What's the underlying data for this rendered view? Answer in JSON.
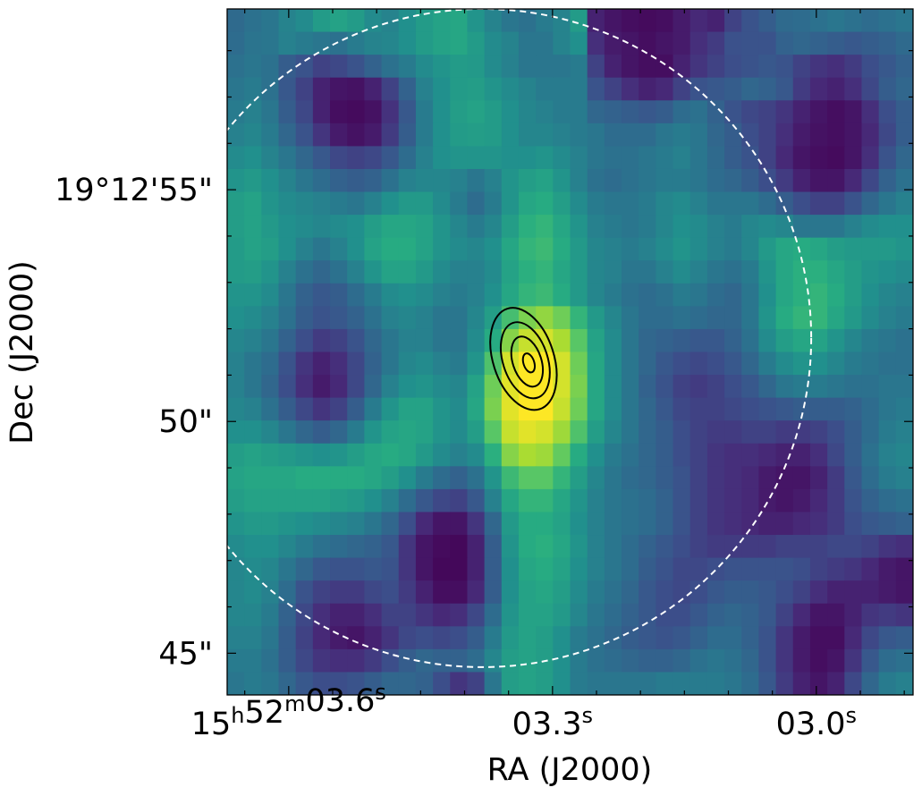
{
  "chart_data": {
    "type": "heatmap",
    "colormap": "viridis",
    "xlabel": "RA (J2000)",
    "ylabel": "Dec (J2000)",
    "x_tick_labels": [
      {
        "ra_s": 3.6,
        "base": "15",
        "h": "h",
        "mid": "52",
        "m": "m",
        "val": "03.6",
        "s": "s"
      },
      {
        "ra_s": 3.3,
        "base": "",
        "h": "",
        "mid": "",
        "m": "",
        "val": "03.3",
        "s": "s"
      },
      {
        "ra_s": 3.0,
        "base": "",
        "h": "",
        "mid": "",
        "m": "",
        "val": "03.0",
        "s": "s"
      }
    ],
    "y_tick_labels": [
      {
        "dec_arcsec": 55,
        "label": "19°12'55\""
      },
      {
        "dec_arcsec": 50,
        "label": "50\""
      },
      {
        "dec_arcsec": 45,
        "label": "45\""
      }
    ],
    "xlim_ra_s": [
      3.67,
      2.89
    ],
    "ylim_dec_arcsec": [
      44.1,
      58.9
    ],
    "beam_circle": {
      "center_ra_s": 3.38,
      "center_dec_arcsec": 51.8,
      "radius_arcsec": 7.1,
      "style": "dashed",
      "color": "#ffffff"
    },
    "contours": {
      "center_ra_s": 3.333,
      "center_dec_arcsec": 51.35,
      "levels": 4,
      "color": "#000000"
    },
    "grid": [
      [
        0.35,
        0.38,
        0.4,
        0.45,
        0.48,
        0.55,
        0.58,
        0.55,
        0.48,
        0.45,
        0.5,
        0.55,
        0.58,
        0.6,
        0.52,
        0.45,
        0.4,
        0.38,
        0.42,
        0.45,
        0.55,
        0.1,
        0.06,
        0.04,
        0.03,
        0.04,
        0.08,
        0.12,
        0.1,
        0.2,
        0.26,
        0.3,
        0.35,
        0.36,
        0.38,
        0.4,
        0.38,
        0.36,
        0.38,
        0.4
      ],
      [
        0.36,
        0.39,
        0.4,
        0.44,
        0.42,
        0.4,
        0.38,
        0.42,
        0.45,
        0.46,
        0.5,
        0.55,
        0.58,
        0.6,
        0.55,
        0.48,
        0.45,
        0.4,
        0.4,
        0.45,
        0.5,
        0.14,
        0.08,
        0.06,
        0.04,
        0.06,
        0.08,
        0.14,
        0.18,
        0.25,
        0.26,
        0.26,
        0.32,
        0.34,
        0.32,
        0.3,
        0.28,
        0.3,
        0.32,
        0.35
      ],
      [
        0.38,
        0.4,
        0.38,
        0.3,
        0.26,
        0.2,
        0.22,
        0.26,
        0.32,
        0.38,
        0.42,
        0.48,
        0.52,
        0.55,
        0.54,
        0.48,
        0.44,
        0.4,
        0.4,
        0.4,
        0.42,
        0.2,
        0.1,
        0.06,
        0.04,
        0.04,
        0.1,
        0.16,
        0.2,
        0.24,
        0.26,
        0.28,
        0.26,
        0.2,
        0.16,
        0.14,
        0.18,
        0.24,
        0.28,
        0.32
      ],
      [
        0.4,
        0.42,
        0.38,
        0.28,
        0.2,
        0.1,
        0.06,
        0.05,
        0.1,
        0.2,
        0.32,
        0.44,
        0.5,
        0.55,
        0.56,
        0.52,
        0.48,
        0.45,
        0.42,
        0.42,
        0.42,
        0.26,
        0.2,
        0.14,
        0.1,
        0.12,
        0.2,
        0.26,
        0.28,
        0.3,
        0.34,
        0.32,
        0.28,
        0.18,
        0.12,
        0.1,
        0.14,
        0.22,
        0.3,
        0.34
      ],
      [
        0.42,
        0.44,
        0.4,
        0.3,
        0.22,
        0.1,
        0.04,
        0.03,
        0.05,
        0.15,
        0.28,
        0.42,
        0.5,
        0.56,
        0.58,
        0.55,
        0.5,
        0.46,
        0.44,
        0.42,
        0.42,
        0.34,
        0.32,
        0.3,
        0.28,
        0.3,
        0.36,
        0.38,
        0.32,
        0.26,
        0.22,
        0.2,
        0.16,
        0.1,
        0.06,
        0.04,
        0.06,
        0.14,
        0.24,
        0.3
      ],
      [
        0.44,
        0.46,
        0.42,
        0.34,
        0.26,
        0.16,
        0.08,
        0.05,
        0.08,
        0.18,
        0.3,
        0.42,
        0.5,
        0.55,
        0.56,
        0.55,
        0.5,
        0.46,
        0.46,
        0.44,
        0.42,
        0.4,
        0.36,
        0.36,
        0.36,
        0.4,
        0.42,
        0.4,
        0.34,
        0.3,
        0.24,
        0.2,
        0.14,
        0.08,
        0.05,
        0.04,
        0.06,
        0.12,
        0.22,
        0.3
      ],
      [
        0.48,
        0.5,
        0.45,
        0.4,
        0.34,
        0.28,
        0.22,
        0.2,
        0.22,
        0.28,
        0.36,
        0.44,
        0.5,
        0.52,
        0.52,
        0.52,
        0.5,
        0.5,
        0.52,
        0.48,
        0.44,
        0.4,
        0.38,
        0.38,
        0.4,
        0.42,
        0.44,
        0.4,
        0.35,
        0.3,
        0.26,
        0.2,
        0.12,
        0.06,
        0.04,
        0.03,
        0.06,
        0.14,
        0.26,
        0.34
      ],
      [
        0.52,
        0.54,
        0.5,
        0.45,
        0.4,
        0.36,
        0.32,
        0.3,
        0.32,
        0.38,
        0.44,
        0.46,
        0.46,
        0.44,
        0.4,
        0.44,
        0.52,
        0.56,
        0.58,
        0.52,
        0.44,
        0.38,
        0.36,
        0.38,
        0.4,
        0.42,
        0.42,
        0.4,
        0.36,
        0.34,
        0.3,
        0.24,
        0.18,
        0.1,
        0.06,
        0.06,
        0.12,
        0.22,
        0.32,
        0.38
      ],
      [
        0.56,
        0.58,
        0.52,
        0.48,
        0.46,
        0.44,
        0.42,
        0.4,
        0.44,
        0.5,
        0.54,
        0.54,
        0.48,
        0.42,
        0.36,
        0.42,
        0.52,
        0.6,
        0.62,
        0.56,
        0.48,
        0.42,
        0.4,
        0.4,
        0.42,
        0.46,
        0.48,
        0.44,
        0.4,
        0.4,
        0.4,
        0.36,
        0.3,
        0.24,
        0.2,
        0.2,
        0.26,
        0.34,
        0.4,
        0.44
      ],
      [
        0.56,
        0.58,
        0.54,
        0.5,
        0.48,
        0.46,
        0.48,
        0.5,
        0.56,
        0.6,
        0.6,
        0.58,
        0.52,
        0.46,
        0.42,
        0.46,
        0.56,
        0.64,
        0.66,
        0.6,
        0.52,
        0.44,
        0.42,
        0.4,
        0.42,
        0.46,
        0.5,
        0.48,
        0.44,
        0.42,
        0.46,
        0.48,
        0.46,
        0.4,
        0.4,
        0.4,
        0.44,
        0.48,
        0.5,
        0.5
      ],
      [
        0.55,
        0.58,
        0.56,
        0.5,
        0.44,
        0.4,
        0.44,
        0.5,
        0.58,
        0.62,
        0.62,
        0.58,
        0.52,
        0.48,
        0.46,
        0.5,
        0.6,
        0.66,
        0.68,
        0.62,
        0.54,
        0.46,
        0.44,
        0.42,
        0.44,
        0.48,
        0.52,
        0.48,
        0.44,
        0.42,
        0.46,
        0.54,
        0.6,
        0.62,
        0.6,
        0.56,
        0.54,
        0.54,
        0.54,
        0.52
      ],
      [
        0.55,
        0.56,
        0.52,
        0.44,
        0.38,
        0.34,
        0.38,
        0.44,
        0.52,
        0.58,
        0.58,
        0.54,
        0.48,
        0.44,
        0.44,
        0.48,
        0.58,
        0.64,
        0.66,
        0.6,
        0.54,
        0.46,
        0.44,
        0.4,
        0.4,
        0.44,
        0.48,
        0.44,
        0.4,
        0.38,
        0.42,
        0.52,
        0.6,
        0.64,
        0.64,
        0.6,
        0.56,
        0.52,
        0.5,
        0.48
      ],
      [
        0.52,
        0.52,
        0.48,
        0.4,
        0.32,
        0.28,
        0.3,
        0.36,
        0.42,
        0.48,
        0.5,
        0.48,
        0.44,
        0.42,
        0.44,
        0.5,
        0.6,
        0.66,
        0.68,
        0.62,
        0.54,
        0.46,
        0.42,
        0.38,
        0.36,
        0.38,
        0.42,
        0.4,
        0.36,
        0.34,
        0.4,
        0.5,
        0.6,
        0.64,
        0.66,
        0.62,
        0.56,
        0.5,
        0.46,
        0.44
      ],
      [
        0.5,
        0.48,
        0.44,
        0.38,
        0.3,
        0.26,
        0.28,
        0.32,
        0.38,
        0.44,
        0.46,
        0.44,
        0.4,
        0.4,
        0.46,
        0.56,
        0.7,
        0.8,
        0.84,
        0.78,
        0.66,
        0.54,
        0.46,
        0.4,
        0.36,
        0.36,
        0.38,
        0.36,
        0.34,
        0.34,
        0.4,
        0.52,
        0.62,
        0.66,
        0.66,
        0.6,
        0.54,
        0.48,
        0.44,
        0.42
      ],
      [
        0.46,
        0.44,
        0.4,
        0.32,
        0.24,
        0.18,
        0.2,
        0.26,
        0.34,
        0.4,
        0.44,
        0.44,
        0.4,
        0.4,
        0.48,
        0.62,
        0.82,
        0.92,
        0.94,
        0.88,
        0.74,
        0.58,
        0.48,
        0.4,
        0.34,
        0.32,
        0.3,
        0.28,
        0.28,
        0.32,
        0.38,
        0.48,
        0.56,
        0.6,
        0.58,
        0.52,
        0.46,
        0.42,
        0.4,
        0.38
      ],
      [
        0.44,
        0.4,
        0.36,
        0.26,
        0.16,
        0.1,
        0.14,
        0.22,
        0.32,
        0.4,
        0.46,
        0.48,
        0.44,
        0.42,
        0.52,
        0.72,
        0.94,
        1.0,
        1.0,
        0.94,
        0.78,
        0.6,
        0.48,
        0.4,
        0.34,
        0.28,
        0.24,
        0.22,
        0.24,
        0.28,
        0.34,
        0.42,
        0.48,
        0.52,
        0.5,
        0.46,
        0.42,
        0.4,
        0.38,
        0.38
      ],
      [
        0.44,
        0.4,
        0.34,
        0.24,
        0.14,
        0.08,
        0.12,
        0.22,
        0.34,
        0.44,
        0.5,
        0.52,
        0.48,
        0.46,
        0.58,
        0.78,
        0.96,
        1.0,
        1.0,
        0.94,
        0.8,
        0.6,
        0.48,
        0.4,
        0.32,
        0.26,
        0.2,
        0.18,
        0.2,
        0.24,
        0.28,
        0.34,
        0.4,
        0.42,
        0.42,
        0.4,
        0.38,
        0.38,
        0.4,
        0.4
      ],
      [
        0.46,
        0.44,
        0.38,
        0.3,
        0.22,
        0.16,
        0.2,
        0.3,
        0.42,
        0.52,
        0.58,
        0.58,
        0.52,
        0.48,
        0.6,
        0.8,
        0.96,
        1.0,
        1.0,
        0.92,
        0.78,
        0.6,
        0.48,
        0.4,
        0.34,
        0.28,
        0.22,
        0.2,
        0.2,
        0.22,
        0.24,
        0.26,
        0.28,
        0.3,
        0.3,
        0.3,
        0.32,
        0.36,
        0.4,
        0.42
      ],
      [
        0.5,
        0.5,
        0.46,
        0.4,
        0.34,
        0.3,
        0.34,
        0.42,
        0.52,
        0.58,
        0.6,
        0.58,
        0.52,
        0.48,
        0.56,
        0.74,
        0.92,
        0.96,
        0.94,
        0.86,
        0.72,
        0.56,
        0.46,
        0.4,
        0.34,
        0.3,
        0.24,
        0.2,
        0.18,
        0.18,
        0.2,
        0.2,
        0.18,
        0.18,
        0.2,
        0.24,
        0.3,
        0.36,
        0.42,
        0.44
      ],
      [
        0.56,
        0.58,
        0.56,
        0.54,
        0.52,
        0.5,
        0.52,
        0.56,
        0.6,
        0.62,
        0.6,
        0.54,
        0.48,
        0.44,
        0.48,
        0.64,
        0.82,
        0.88,
        0.86,
        0.76,
        0.62,
        0.5,
        0.42,
        0.38,
        0.34,
        0.3,
        0.24,
        0.2,
        0.16,
        0.14,
        0.14,
        0.12,
        0.1,
        0.1,
        0.14,
        0.22,
        0.3,
        0.38,
        0.44,
        0.46
      ],
      [
        0.58,
        0.6,
        0.6,
        0.6,
        0.62,
        0.62,
        0.62,
        0.62,
        0.6,
        0.56,
        0.5,
        0.42,
        0.36,
        0.32,
        0.38,
        0.52,
        0.68,
        0.74,
        0.74,
        0.66,
        0.56,
        0.46,
        0.4,
        0.36,
        0.34,
        0.3,
        0.26,
        0.2,
        0.16,
        0.14,
        0.12,
        0.08,
        0.06,
        0.06,
        0.1,
        0.18,
        0.28,
        0.36,
        0.42,
        0.44
      ],
      [
        0.56,
        0.58,
        0.58,
        0.58,
        0.58,
        0.58,
        0.56,
        0.54,
        0.5,
        0.44,
        0.36,
        0.28,
        0.22,
        0.2,
        0.28,
        0.44,
        0.6,
        0.66,
        0.66,
        0.6,
        0.52,
        0.44,
        0.4,
        0.38,
        0.36,
        0.32,
        0.26,
        0.2,
        0.16,
        0.14,
        0.12,
        0.08,
        0.06,
        0.08,
        0.12,
        0.18,
        0.26,
        0.32,
        0.36,
        0.38
      ],
      [
        0.52,
        0.54,
        0.54,
        0.52,
        0.5,
        0.48,
        0.46,
        0.44,
        0.4,
        0.34,
        0.24,
        0.12,
        0.06,
        0.06,
        0.16,
        0.34,
        0.54,
        0.62,
        0.62,
        0.58,
        0.5,
        0.44,
        0.4,
        0.38,
        0.36,
        0.32,
        0.26,
        0.2,
        0.16,
        0.14,
        0.12,
        0.1,
        0.1,
        0.12,
        0.14,
        0.18,
        0.24,
        0.28,
        0.3,
        0.32
      ],
      [
        0.48,
        0.5,
        0.5,
        0.46,
        0.42,
        0.38,
        0.36,
        0.34,
        0.32,
        0.28,
        0.16,
        0.06,
        0.03,
        0.02,
        0.1,
        0.3,
        0.52,
        0.62,
        0.64,
        0.6,
        0.52,
        0.44,
        0.4,
        0.36,
        0.32,
        0.28,
        0.24,
        0.2,
        0.18,
        0.18,
        0.18,
        0.18,
        0.2,
        0.2,
        0.2,
        0.22,
        0.22,
        0.2,
        0.16,
        0.14
      ],
      [
        0.46,
        0.48,
        0.46,
        0.4,
        0.34,
        0.28,
        0.26,
        0.26,
        0.28,
        0.26,
        0.16,
        0.06,
        0.02,
        0.02,
        0.1,
        0.3,
        0.5,
        0.6,
        0.62,
        0.58,
        0.5,
        0.44,
        0.4,
        0.36,
        0.3,
        0.26,
        0.22,
        0.22,
        0.24,
        0.26,
        0.26,
        0.26,
        0.26,
        0.24,
        0.2,
        0.18,
        0.16,
        0.12,
        0.08,
        0.06
      ],
      [
        0.46,
        0.48,
        0.44,
        0.36,
        0.26,
        0.2,
        0.18,
        0.18,
        0.22,
        0.24,
        0.18,
        0.1,
        0.04,
        0.04,
        0.12,
        0.3,
        0.5,
        0.58,
        0.6,
        0.56,
        0.48,
        0.42,
        0.38,
        0.34,
        0.28,
        0.24,
        0.22,
        0.24,
        0.28,
        0.3,
        0.3,
        0.28,
        0.24,
        0.2,
        0.14,
        0.1,
        0.1,
        0.1,
        0.08,
        0.06
      ],
      [
        0.46,
        0.46,
        0.42,
        0.32,
        0.22,
        0.14,
        0.1,
        0.1,
        0.14,
        0.2,
        0.2,
        0.16,
        0.12,
        0.14,
        0.22,
        0.36,
        0.52,
        0.58,
        0.58,
        0.54,
        0.46,
        0.4,
        0.36,
        0.32,
        0.28,
        0.24,
        0.24,
        0.28,
        0.32,
        0.34,
        0.32,
        0.28,
        0.2,
        0.12,
        0.06,
        0.06,
        0.1,
        0.16,
        0.18,
        0.16
      ],
      [
        0.44,
        0.44,
        0.4,
        0.3,
        0.2,
        0.12,
        0.08,
        0.06,
        0.1,
        0.16,
        0.22,
        0.24,
        0.22,
        0.24,
        0.3,
        0.42,
        0.54,
        0.58,
        0.56,
        0.5,
        0.42,
        0.38,
        0.34,
        0.3,
        0.28,
        0.26,
        0.28,
        0.32,
        0.36,
        0.36,
        0.32,
        0.26,
        0.16,
        0.08,
        0.04,
        0.04,
        0.12,
        0.22,
        0.28,
        0.3
      ],
      [
        0.42,
        0.42,
        0.38,
        0.3,
        0.22,
        0.16,
        0.14,
        0.14,
        0.18,
        0.24,
        0.3,
        0.34,
        0.32,
        0.32,
        0.36,
        0.46,
        0.56,
        0.58,
        0.56,
        0.5,
        0.42,
        0.38,
        0.36,
        0.34,
        0.32,
        0.32,
        0.34,
        0.38,
        0.4,
        0.38,
        0.34,
        0.26,
        0.16,
        0.08,
        0.04,
        0.06,
        0.16,
        0.28,
        0.36,
        0.38
      ],
      [
        0.4,
        0.42,
        0.4,
        0.34,
        0.28,
        0.24,
        0.24,
        0.26,
        0.3,
        0.34,
        0.34,
        0.32,
        0.24,
        0.16,
        0.2,
        0.4,
        0.56,
        0.58,
        0.56,
        0.5,
        0.42,
        0.4,
        0.4,
        0.4,
        0.4,
        0.42,
        0.42,
        0.42,
        0.42,
        0.4,
        0.36,
        0.28,
        0.18,
        0.1,
        0.06,
        0.1,
        0.22,
        0.34,
        0.42,
        0.44
      ]
    ]
  }
}
